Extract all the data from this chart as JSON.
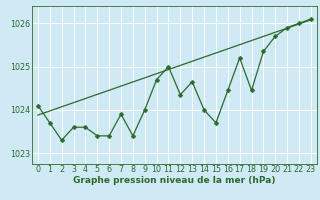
{
  "title": "Graphe pression niveau de la mer (hPa)",
  "bg_color": "#cfe9f5",
  "plot_bg_color": "#cfe9f5",
  "line_color": "#2d6a2d",
  "grid_color": "#ffffff",
  "ylim": [
    1022.75,
    1026.4
  ],
  "xlim": [
    -0.5,
    23.5
  ],
  "yticks": [
    1023,
    1024,
    1025,
    1026
  ],
  "xticks": [
    0,
    1,
    2,
    3,
    4,
    5,
    6,
    7,
    8,
    9,
    10,
    11,
    12,
    13,
    14,
    15,
    16,
    17,
    18,
    19,
    20,
    21,
    22,
    23
  ],
  "hours": [
    0,
    1,
    2,
    3,
    4,
    5,
    6,
    7,
    8,
    9,
    10,
    11,
    12,
    13,
    14,
    15,
    16,
    17,
    18,
    19,
    20,
    21,
    22,
    23
  ],
  "pressure": [
    1024.1,
    1023.7,
    1023.3,
    1023.6,
    1023.6,
    1023.4,
    1023.4,
    1023.9,
    1023.4,
    1024.0,
    1024.7,
    1025.0,
    1024.35,
    1024.65,
    1024.0,
    1023.7,
    1024.45,
    1025.2,
    1024.45,
    1025.35,
    1025.7,
    1025.9,
    1026.0,
    1026.1
  ],
  "trend_x": [
    0,
    23
  ],
  "trend_y": [
    1023.88,
    1026.08
  ],
  "marker_size": 2.5,
  "xlabel_fontsize": 6.5,
  "tick_fontsize": 5.8
}
